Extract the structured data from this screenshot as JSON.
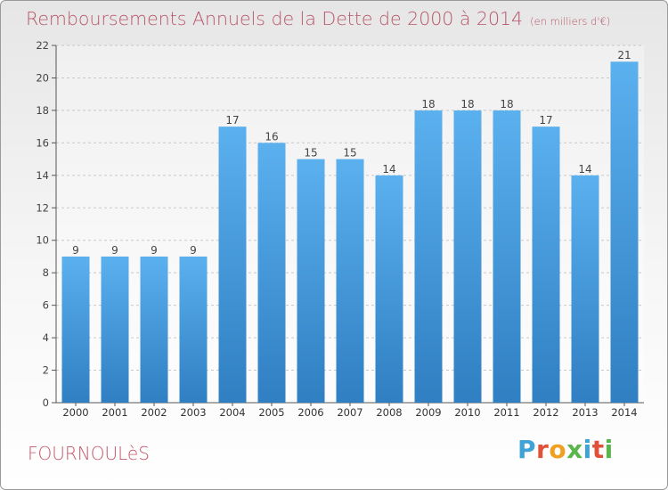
{
  "chart_data": {
    "type": "bar",
    "title": "Remboursements Annuels de la Dette de 2000 à 2014",
    "subtitle": "(en milliers d'€)",
    "categories": [
      "2000",
      "2001",
      "2002",
      "2003",
      "2004",
      "2005",
      "2006",
      "2007",
      "2008",
      "2009",
      "2010",
      "2011",
      "2012",
      "2013",
      "2014"
    ],
    "values": [
      9,
      9,
      9,
      9,
      17,
      16,
      15,
      15,
      14,
      18,
      18,
      18,
      17,
      14,
      21
    ],
    "ylim": [
      0,
      22
    ],
    "yticks": [
      0,
      2,
      4,
      6,
      8,
      10,
      12,
      14,
      16,
      18,
      20,
      22
    ],
    "grid": true,
    "bar_color": "#4a9fe0",
    "title_color": "#b8566a"
  },
  "footer": {
    "place": "FOURNOULèS",
    "logo": "Proxiti"
  },
  "logo_colors": [
    "#3fa3d6",
    "#e0513a",
    "#f0a020",
    "#5ab54a",
    "#3fa3d6",
    "#e0513a",
    "#5ab54a"
  ]
}
